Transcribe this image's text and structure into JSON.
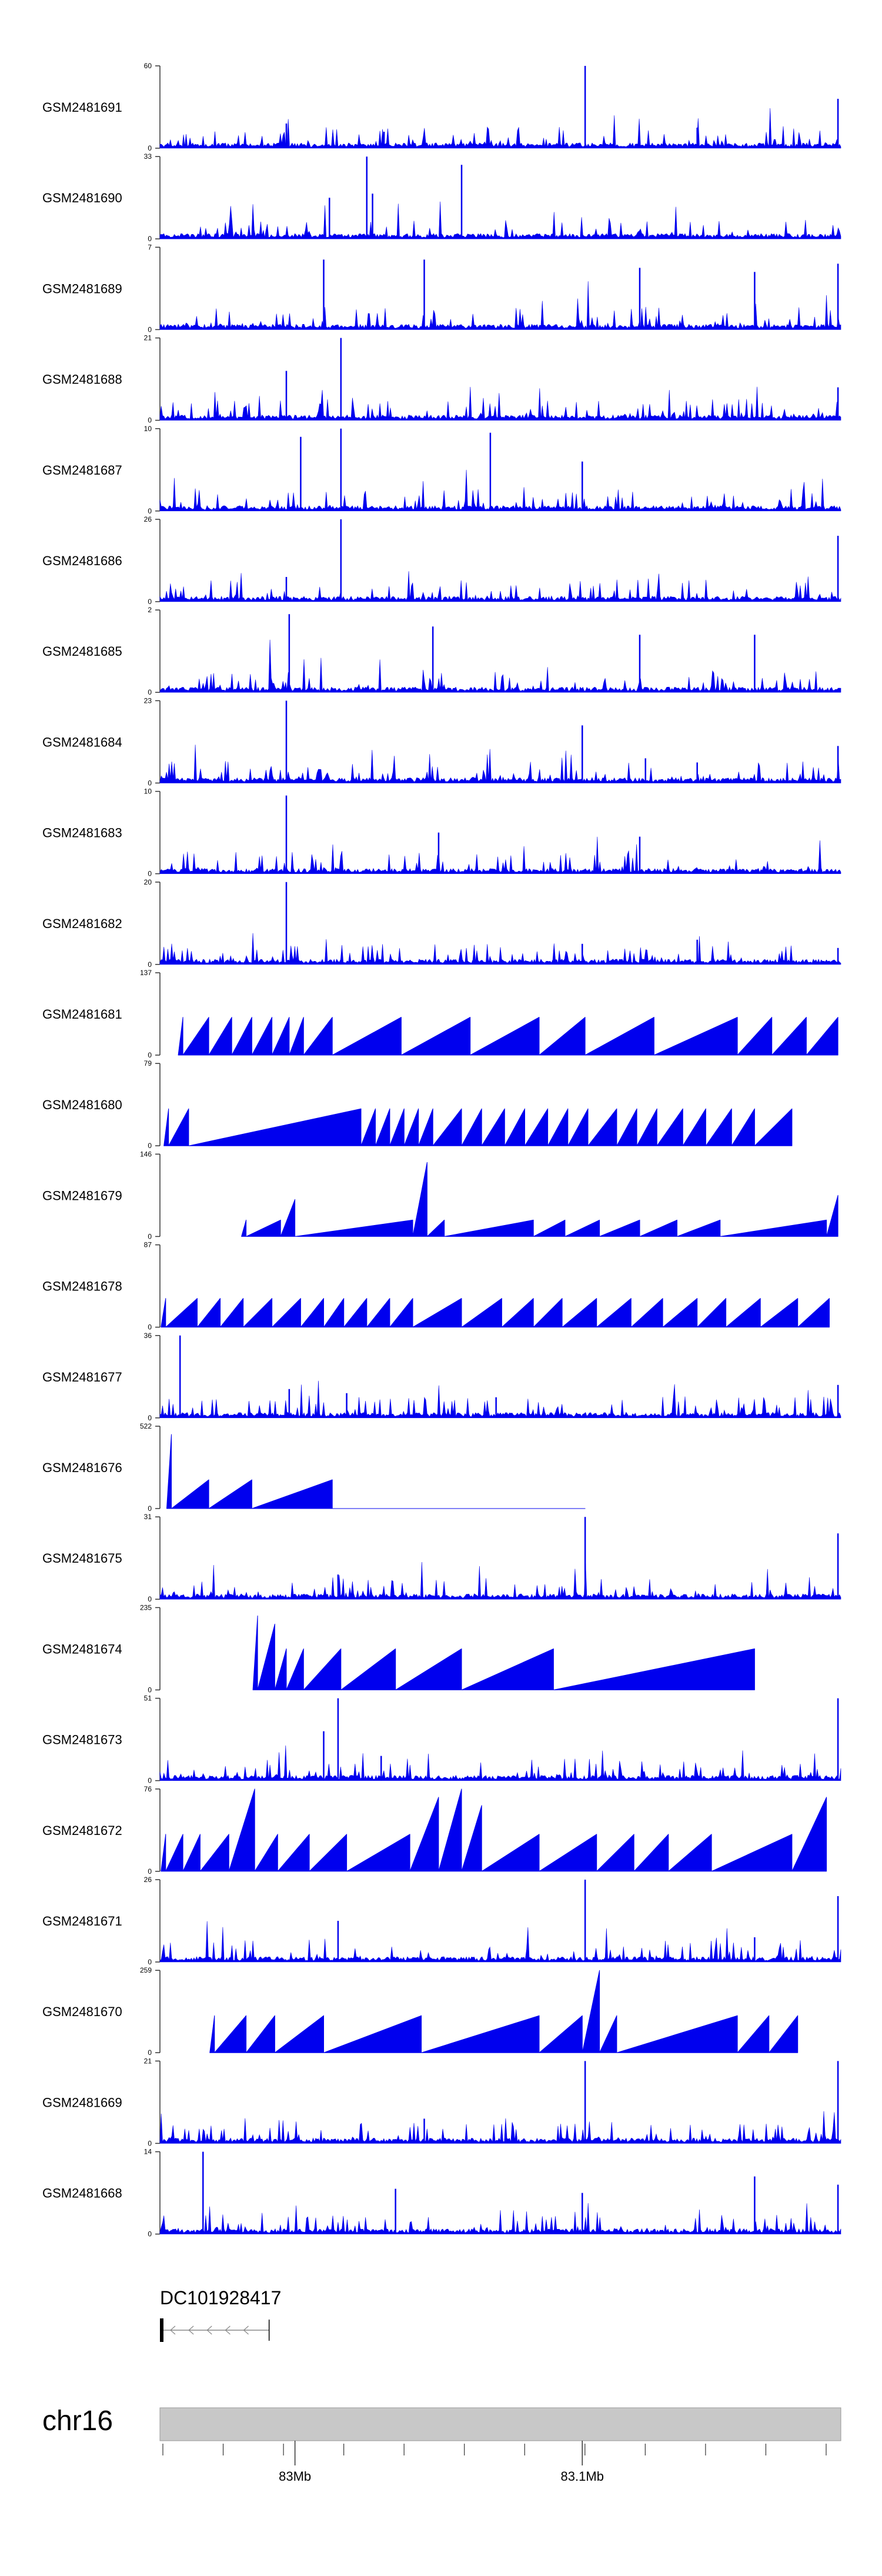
{
  "chart_data": {
    "type": "area",
    "title": "",
    "chromosome": "chr16",
    "xlim_mb": [
      82.953,
      83.19
    ],
    "axis_ticks_mb": [
      83.0,
      83.1
    ],
    "axis_tick_labels": [
      "83Mb",
      "83.1Mb"
    ],
    "gene": {
      "label": "DC101928417",
      "start_mb": 82.953,
      "end_mb": 82.991,
      "strand": "-"
    },
    "colors": {
      "signal": "#0000ee",
      "ideogram": "#c8c8c8",
      "ideogram_border": "#999999",
      "axis": "#333333"
    },
    "series": [
      {
        "name": "GSM2481691",
        "ymax": 60,
        "style": "dense",
        "peaks": [
          [
            82.997,
            0.3
          ],
          [
            83.031,
            0.2
          ],
          [
            83.101,
            1.0
          ],
          [
            83.14,
            0.25
          ],
          [
            83.189,
            0.6
          ]
        ]
      },
      {
        "name": "GSM2481690",
        "ymax": 33,
        "style": "dense",
        "peaks": [
          [
            83.025,
            1.0
          ],
          [
            83.058,
            0.9
          ],
          [
            83.027,
            0.55
          ],
          [
            83.012,
            0.5
          ]
        ]
      },
      {
        "name": "GSM2481689",
        "ymax": 7,
        "style": "dense",
        "peaks": [
          [
            83.01,
            0.85
          ],
          [
            83.045,
            0.85
          ],
          [
            83.12,
            0.75
          ],
          [
            83.16,
            0.7
          ],
          [
            83.189,
            0.8
          ]
        ]
      },
      {
        "name": "GSM2481688",
        "ymax": 21,
        "style": "dense",
        "peaks": [
          [
            83.016,
            1.0
          ],
          [
            82.997,
            0.6
          ],
          [
            83.189,
            0.4
          ]
        ]
      },
      {
        "name": "GSM2481687",
        "ymax": 10,
        "style": "dense",
        "peaks": [
          [
            83.016,
            1.0
          ],
          [
            83.002,
            0.9
          ],
          [
            83.068,
            0.95
          ],
          [
            83.1,
            0.6
          ]
        ]
      },
      {
        "name": "GSM2481686",
        "ymax": 26,
        "style": "dense",
        "peaks": [
          [
            83.016,
            1.0
          ],
          [
            82.997,
            0.3
          ],
          [
            83.189,
            0.8
          ]
        ]
      },
      {
        "name": "GSM2481685",
        "ymax": 2,
        "style": "dense",
        "peaks": [
          [
            82.998,
            0.95
          ],
          [
            83.048,
            0.8
          ],
          [
            83.12,
            0.7
          ],
          [
            83.16,
            0.7
          ]
        ]
      },
      {
        "name": "GSM2481684",
        "ymax": 23,
        "style": "dense",
        "peaks": [
          [
            82.997,
            1.0
          ],
          [
            83.1,
            0.7
          ],
          [
            83.122,
            0.3
          ],
          [
            83.14,
            0.25
          ],
          [
            83.189,
            0.45
          ]
        ]
      },
      {
        "name": "GSM2481683",
        "ymax": 10,
        "style": "dense",
        "peaks": [
          [
            82.997,
            0.95
          ],
          [
            83.05,
            0.5
          ],
          [
            83.12,
            0.45
          ]
        ]
      },
      {
        "name": "GSM2481682",
        "ymax": 20,
        "style": "dense",
        "peaks": [
          [
            82.997,
            1.0
          ],
          [
            83.1,
            0.25
          ],
          [
            83.14,
            0.3
          ],
          [
            83.189,
            0.2
          ]
        ]
      },
      {
        "name": "GSM2481681",
        "ymax": 137,
        "style": "sparse",
        "peaks": [
          [
            82.961,
            0.46
          ],
          [
            82.97,
            0.46
          ],
          [
            82.978,
            0.46
          ],
          [
            82.985,
            0.46
          ],
          [
            82.992,
            0.46
          ],
          [
            82.998,
            0.46
          ],
          [
            83.003,
            0.46
          ],
          [
            83.013,
            0.46
          ],
          [
            83.037,
            0.46
          ],
          [
            83.061,
            0.46
          ],
          [
            83.085,
            0.46
          ],
          [
            83.101,
            0.46
          ],
          [
            83.125,
            0.46
          ],
          [
            83.154,
            0.46
          ],
          [
            83.166,
            0.46
          ],
          [
            83.178,
            0.46
          ],
          [
            83.189,
            0.46
          ]
        ]
      },
      {
        "name": "GSM2481680",
        "ymax": 79,
        "style": "sparse",
        "peaks": [
          [
            82.956,
            0.45
          ],
          [
            82.963,
            0.45
          ],
          [
            83.023,
            0.45
          ],
          [
            83.028,
            0.45
          ],
          [
            83.033,
            0.45
          ],
          [
            83.038,
            0.45
          ],
          [
            83.043,
            0.45
          ],
          [
            83.048,
            0.45
          ],
          [
            83.058,
            0.45
          ],
          [
            83.065,
            0.45
          ],
          [
            83.073,
            0.45
          ],
          [
            83.08,
            0.45
          ],
          [
            83.088,
            0.45
          ],
          [
            83.095,
            0.45
          ],
          [
            83.102,
            0.45
          ],
          [
            83.112,
            0.45
          ],
          [
            83.119,
            0.45
          ],
          [
            83.126,
            0.45
          ],
          [
            83.135,
            0.45
          ],
          [
            83.143,
            0.45
          ],
          [
            83.152,
            0.45
          ],
          [
            83.16,
            0.45
          ],
          [
            83.173,
            0.45
          ]
        ]
      },
      {
        "name": "GSM2481679",
        "ymax": 146,
        "style": "sparse",
        "peaks": [
          [
            82.983,
            0.2
          ],
          [
            82.995,
            0.2
          ],
          [
            83.0,
            0.45
          ],
          [
            83.041,
            0.2
          ],
          [
            83.046,
            0.9
          ],
          [
            83.052,
            0.2
          ],
          [
            83.083,
            0.2
          ],
          [
            83.094,
            0.2
          ],
          [
            83.106,
            0.2
          ],
          [
            83.12,
            0.2
          ],
          [
            83.133,
            0.2
          ],
          [
            83.148,
            0.2
          ],
          [
            83.185,
            0.2
          ],
          [
            83.189,
            0.5
          ]
        ]
      },
      {
        "name": "GSM2481678",
        "ymax": 87,
        "style": "sparse",
        "peaks": [
          [
            82.955,
            0.35
          ],
          [
            82.966,
            0.35
          ],
          [
            82.974,
            0.35
          ],
          [
            82.982,
            0.35
          ],
          [
            82.992,
            0.35
          ],
          [
            83.002,
            0.35
          ],
          [
            83.01,
            0.35
          ],
          [
            83.017,
            0.35
          ],
          [
            83.025,
            0.35
          ],
          [
            83.033,
            0.35
          ],
          [
            83.041,
            0.35
          ],
          [
            83.058,
            0.35
          ],
          [
            83.072,
            0.35
          ],
          [
            83.083,
            0.35
          ],
          [
            83.093,
            0.35
          ],
          [
            83.105,
            0.35
          ],
          [
            83.117,
            0.35
          ],
          [
            83.128,
            0.35
          ],
          [
            83.14,
            0.35
          ],
          [
            83.15,
            0.35
          ],
          [
            83.162,
            0.35
          ],
          [
            83.175,
            0.35
          ],
          [
            83.186,
            0.35
          ]
        ]
      },
      {
        "name": "GSM2481677",
        "ymax": 36,
        "style": "dense",
        "peaks": [
          [
            82.96,
            1.0
          ],
          [
            82.998,
            0.35
          ],
          [
            83.018,
            0.3
          ],
          [
            83.07,
            0.25
          ],
          [
            83.189,
            0.4
          ]
        ]
      },
      {
        "name": "GSM2481676",
        "ymax": 522,
        "style": "sparse",
        "peaks": [
          [
            82.957,
            0.9
          ],
          [
            82.97,
            0.35
          ],
          [
            82.985,
            0.35
          ],
          [
            83.013,
            0.35
          ],
          [
            83.101,
            0.0
          ]
        ]
      },
      {
        "name": "GSM2481675",
        "ymax": 31,
        "style": "dense",
        "peaks": [
          [
            83.101,
            1.0
          ],
          [
            83.189,
            0.8
          ],
          [
            83.015,
            0.3
          ]
        ]
      },
      {
        "name": "GSM2481674",
        "ymax": 235,
        "style": "sparse",
        "peaks": [
          [
            82.987,
            0.9
          ],
          [
            82.993,
            0.8
          ],
          [
            82.997,
            0.5
          ],
          [
            83.003,
            0.5
          ],
          [
            83.016,
            0.5
          ],
          [
            83.035,
            0.5
          ],
          [
            83.058,
            0.5
          ],
          [
            83.09,
            0.5
          ],
          [
            83.16,
            0.5
          ]
        ]
      },
      {
        "name": "GSM2481673",
        "ymax": 51,
        "style": "dense",
        "peaks": [
          [
            83.015,
            1.0
          ],
          [
            83.01,
            0.6
          ],
          [
            83.03,
            0.3
          ],
          [
            83.189,
            1.0
          ]
        ]
      },
      {
        "name": "GSM2481672",
        "ymax": 76,
        "style": "sparse",
        "peaks": [
          [
            82.955,
            0.45
          ],
          [
            82.961,
            0.45
          ],
          [
            82.967,
            0.45
          ],
          [
            82.977,
            0.45
          ],
          [
            82.986,
            1.0
          ],
          [
            82.994,
            0.45
          ],
          [
            83.005,
            0.45
          ],
          [
            83.018,
            0.45
          ],
          [
            83.04,
            0.45
          ],
          [
            83.05,
            0.9
          ],
          [
            83.058,
            1.0
          ],
          [
            83.065,
            0.8
          ],
          [
            83.085,
            0.45
          ],
          [
            83.105,
            0.45
          ],
          [
            83.118,
            0.45
          ],
          [
            83.13,
            0.45
          ],
          [
            83.145,
            0.45
          ],
          [
            83.173,
            0.45
          ],
          [
            83.185,
            0.9
          ]
        ]
      },
      {
        "name": "GSM2481671",
        "ymax": 26,
        "style": "dense",
        "peaks": [
          [
            83.101,
            1.0
          ],
          [
            83.189,
            0.8
          ],
          [
            83.015,
            0.5
          ],
          [
            83.16,
            0.3
          ]
        ]
      },
      {
        "name": "GSM2481670",
        "ymax": 259,
        "style": "sparse",
        "peaks": [
          [
            82.972,
            0.45
          ],
          [
            82.983,
            0.45
          ],
          [
            82.993,
            0.45
          ],
          [
            83.01,
            0.45
          ],
          [
            83.044,
            0.45
          ],
          [
            83.085,
            0.45
          ],
          [
            83.1,
            0.45
          ],
          [
            83.106,
            1.0
          ],
          [
            83.112,
            0.45
          ],
          [
            83.154,
            0.45
          ],
          [
            83.165,
            0.45
          ],
          [
            83.175,
            0.45
          ]
        ]
      },
      {
        "name": "GSM2481669",
        "ymax": 21,
        "style": "dense",
        "peaks": [
          [
            83.101,
            1.0
          ],
          [
            83.189,
            1.0
          ],
          [
            83.045,
            0.3
          ]
        ]
      },
      {
        "name": "GSM2481668",
        "ymax": 14,
        "style": "dense",
        "peaks": [
          [
            82.968,
            1.0
          ],
          [
            83.16,
            0.7
          ],
          [
            83.035,
            0.55
          ],
          [
            83.1,
            0.5
          ],
          [
            83.189,
            0.6
          ]
        ]
      }
    ]
  }
}
